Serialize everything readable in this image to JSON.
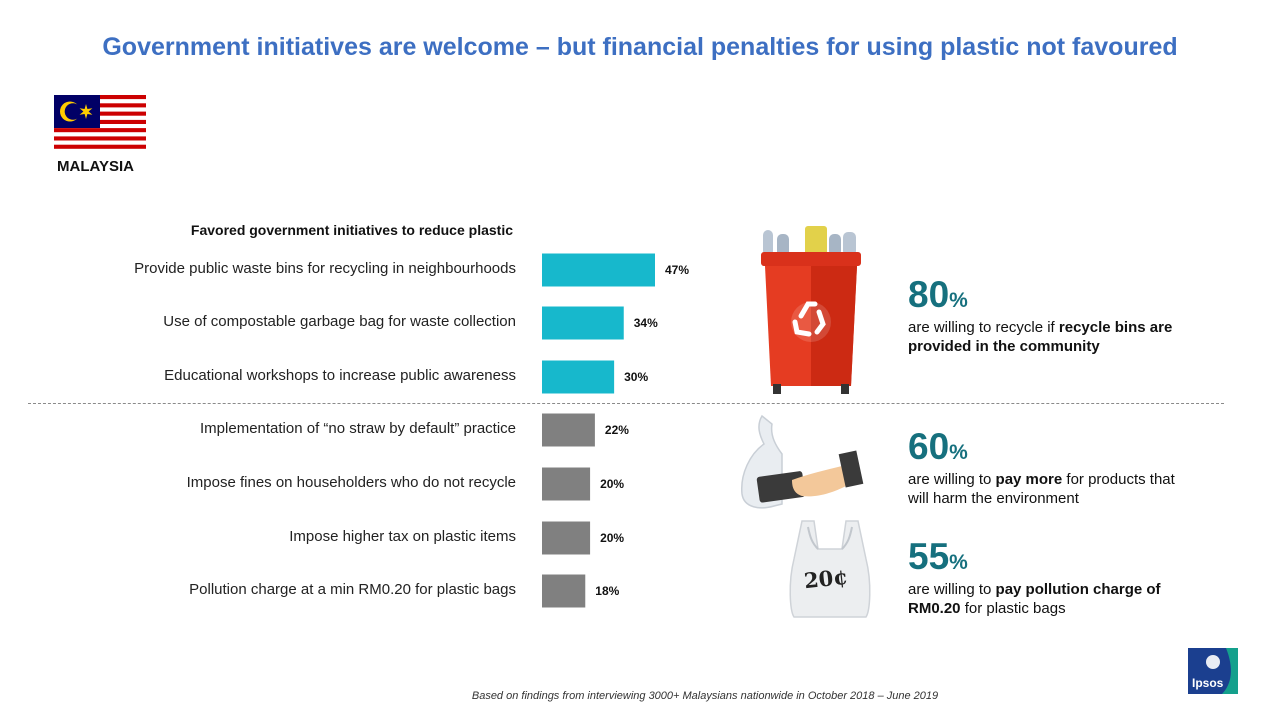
{
  "title": "Government initiatives are welcome – but financial penalties for using plastic not favoured",
  "country": "MALAYSIA",
  "chart_data": {
    "type": "bar",
    "orientation": "horizontal",
    "title": "Favored government initiatives to reduce plastic",
    "categories": [
      "Provide public waste bins for recycling in neighbourhoods",
      "Use of compostable garbage bag for waste collection",
      "Educational workshops to increase public awareness",
      "Implementation of “no straw by default” practice",
      "Impose fines on householders who do not recycle",
      "Impose higher tax on plastic items",
      "Pollution charge at a min RM0.20 for plastic bags"
    ],
    "values": [
      47,
      34,
      30,
      22,
      20,
      20,
      18
    ],
    "value_labels": [
      "47%",
      "34%",
      "30%",
      "22%",
      "20%",
      "20%",
      "18%"
    ],
    "bar_colors": [
      "#17b8cc",
      "#17b8cc",
      "#17b8cc",
      "#808080",
      "#808080",
      "#808080",
      "#808080"
    ],
    "xlim": [
      0,
      100
    ]
  },
  "stats": [
    {
      "number": "80",
      "unit": "%",
      "text_pre": "are willing to recycle if ",
      "text_bold": "recycle bins are provided in the community",
      "text_post": ""
    },
    {
      "number": "60",
      "unit": "%",
      "text_pre": "are willing to ",
      "text_bold": "pay more",
      "text_post": " for products that will harm the environment"
    },
    {
      "number": "55",
      "unit": "%",
      "text_pre": "are willing to ",
      "text_bold": "pay pollution charge of RM0.20 ",
      "text_post": "for plastic bags"
    }
  ],
  "bag_price": "20¢",
  "footnote": "Based on findings from interviewing 3000+  Malaysians nationwide in October 2018 – June 2019",
  "brand": "Ipsos",
  "colors": {
    "title": "#3d6fc2",
    "accent": "#16707e",
    "bar_top": "#17b8cc",
    "bar_rest": "#808080"
  }
}
